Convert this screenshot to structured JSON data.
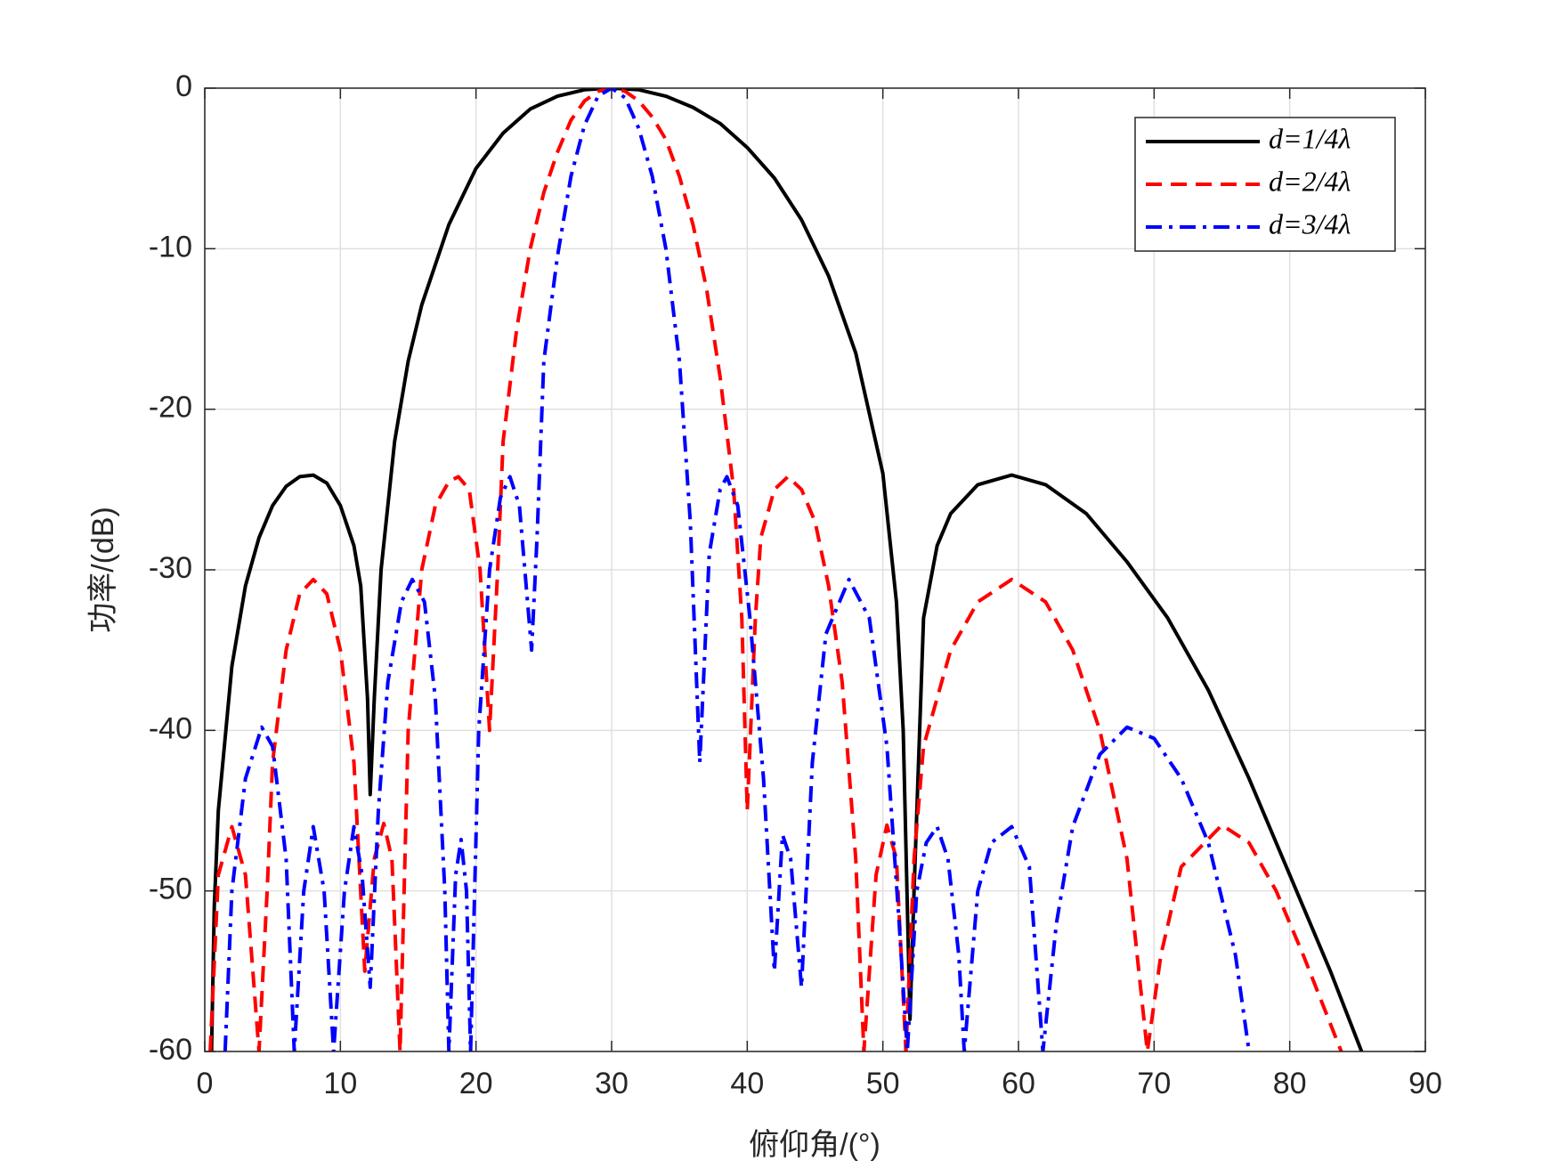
{
  "chart_data": {
    "type": "line",
    "xlabel": "俯仰角/(°)",
    "ylabel": "功率/(dB)",
    "xlim": [
      0,
      90
    ],
    "ylim": [
      -60,
      0
    ],
    "xticks": [
      0,
      10,
      20,
      30,
      40,
      50,
      60,
      70,
      80,
      90
    ],
    "yticks": [
      -60,
      -50,
      -40,
      -30,
      -20,
      -10,
      0
    ],
    "grid": true,
    "legend": "upper right",
    "series": [
      {
        "name": "d=1/4λ",
        "color": "#000000",
        "line_style": "solid",
        "x": [
          0.5,
          0.7,
          1,
          2,
          3,
          4,
          5,
          6,
          7,
          8,
          9,
          10,
          11,
          11.5,
          12,
          12.2,
          12.5,
          13,
          14,
          15,
          16,
          18,
          20,
          22,
          24,
          26,
          28,
          30,
          32,
          34,
          36,
          38,
          40,
          42,
          44,
          46,
          48,
          50,
          51,
          51.5,
          52,
          52.3,
          53,
          54,
          55,
          57,
          59.5,
          62,
          65,
          68,
          71,
          74,
          77,
          80,
          83,
          85.3
        ],
        "values": [
          -60,
          -51,
          -45,
          -36,
          -31,
          -28,
          -26,
          -24.8,
          -24.2,
          -24.1,
          -24.6,
          -26,
          -28.5,
          -31,
          -38,
          -44,
          -38,
          -30,
          -22,
          -17,
          -13.5,
          -8.5,
          -5,
          -2.8,
          -1.3,
          -0.5,
          -0.1,
          0,
          -0.1,
          -0.5,
          -1.2,
          -2.2,
          -3.7,
          -5.6,
          -8.2,
          -11.7,
          -16.5,
          -24,
          -32,
          -40,
          -58,
          -50,
          -33,
          -28.5,
          -26.5,
          -24.7,
          -24.1,
          -24.7,
          -26.5,
          -29.5,
          -33,
          -37.5,
          -43,
          -49,
          -55,
          -60
        ]
      },
      {
        "name": "d=2/4λ",
        "color": "#ff0000",
        "line_style": "dashed",
        "x": [
          0.4,
          1,
          2,
          3,
          4,
          4.6,
          5,
          6,
          7,
          8,
          9,
          10,
          11,
          11.8,
          12.5,
          13.2,
          13.8,
          14.4,
          15,
          16,
          17,
          18,
          18.7,
          19.5,
          20.3,
          21,
          21.6,
          22,
          23,
          24,
          25,
          26,
          27,
          28,
          29,
          30,
          31,
          32,
          33,
          34,
          35,
          36,
          37,
          38,
          39,
          39.6,
          40,
          40.6,
          41,
          42,
          43,
          44,
          45,
          46,
          47,
          48,
          48.6,
          49.5,
          50.3,
          51,
          51.7,
          52.3,
          53,
          55,
          57,
          59.5,
          62,
          64,
          66,
          68,
          69.5,
          70.5,
          72,
          75,
          77,
          79,
          81,
          83.8
        ],
        "values": [
          -60,
          -49,
          -46,
          -49,
          -60,
          -50,
          -42,
          -35,
          -31.5,
          -30.6,
          -31.5,
          -35,
          -42,
          -55,
          -48,
          -45.8,
          -48,
          -60,
          -40,
          -30,
          -26,
          -24.5,
          -24.2,
          -25,
          -30,
          -40,
          -30,
          -22,
          -15,
          -10,
          -6.5,
          -4,
          -2,
          -0.8,
          -0.2,
          0,
          -0.2,
          -0.8,
          -1.8,
          -3.2,
          -5.5,
          -8.5,
          -12.5,
          -18,
          -25,
          -33,
          -45,
          -33,
          -28,
          -25,
          -24.2,
          -25,
          -27,
          -31,
          -37,
          -48,
          -60,
          -49,
          -45.9,
          -48,
          -60,
          -48,
          -41,
          -35,
          -32,
          -30.6,
          -32,
          -35,
          -40,
          -48,
          -60,
          -54,
          -48.5,
          -45.9,
          -47,
          -50,
          -54,
          -60
        ]
      },
      {
        "name": "d=3/4λ",
        "color": "#0000ff",
        "line_style": "dashdot",
        "x": [
          1.5,
          2,
          3,
          4.2,
          5,
          6,
          6.6,
          7.3,
          8,
          8.8,
          9.5,
          10.3,
          11,
          11.6,
          12.2,
          12.8,
          13.5,
          14.5,
          15.3,
          16.2,
          17,
          17.7,
          18,
          18.5,
          18.9,
          19.3,
          19.6,
          20.2,
          21,
          21.8,
          22.5,
          23.2,
          23.7,
          24.1,
          24.5,
          25,
          26,
          27,
          28,
          29,
          30,
          31,
          32,
          33,
          34,
          35,
          35.8,
          36.5,
          37.2,
          38,
          38.5,
          39.3,
          40.2,
          41.2,
          42,
          42.6,
          43.2,
          44,
          44.8,
          45.8,
          47.5,
          49,
          50.3,
          51.2,
          51.8,
          52.5,
          53.2,
          54,
          54.8,
          55.6,
          56,
          57,
          58,
          59.5,
          60.8,
          61.8,
          62.8,
          64,
          66,
          68,
          70,
          72,
          74,
          76,
          77
        ],
        "values": [
          -60,
          -50,
          -43,
          -39.8,
          -41,
          -48,
          -60,
          -50,
          -46,
          -50,
          -60,
          -50,
          -46,
          -49,
          -56,
          -45,
          -37,
          -32,
          -30.6,
          -32,
          -38,
          -50,
          -60,
          -49,
          -46.8,
          -50,
          -60,
          -40,
          -30,
          -25.5,
          -24.2,
          -26,
          -31,
          -35,
          -28,
          -17,
          -10.5,
          -5.5,
          -2.3,
          -0.5,
          0,
          -0.6,
          -2.5,
          -5.5,
          -10,
          -17,
          -27,
          -42,
          -29,
          -25,
          -24.2,
          -26,
          -33,
          -43,
          -55,
          -46.5,
          -48,
          -56,
          -42,
          -34,
          -30.6,
          -33,
          -41,
          -52,
          -60,
          -50,
          -47,
          -46,
          -48,
          -54,
          -60,
          -50,
          -47,
          -46,
          -48.5,
          -60,
          -52,
          -46,
          -41.5,
          -39.8,
          -40.5,
          -43,
          -47,
          -54,
          -60
        ]
      }
    ]
  }
}
